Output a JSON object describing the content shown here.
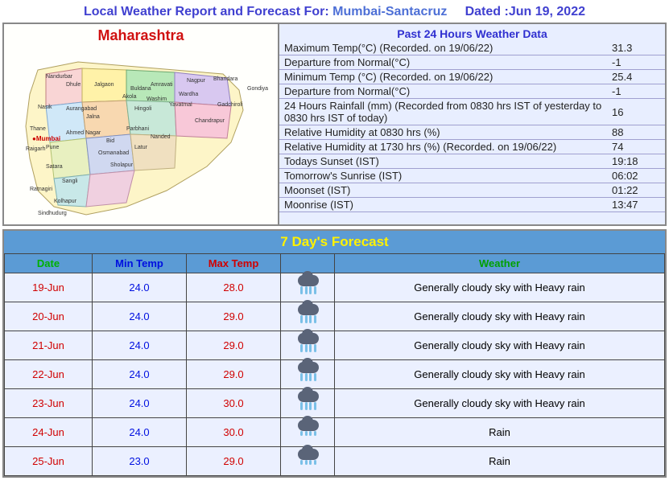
{
  "header": {
    "label": "Local Weather Report and Forecast For:",
    "location": "Mumbai-Santacruz",
    "date_label": "Dated :",
    "date_value": "Jun 19, 2022"
  },
  "map": {
    "title": "Maharashtra",
    "title_color": "#d01010"
  },
  "past24": {
    "title": "Past 24 Hours Weather Data",
    "rows": [
      {
        "label": "Maximum Temp(°C) (Recorded. on 19/06/22)",
        "value": "31.3"
      },
      {
        "label": "Departure from Normal(°C)",
        "value": "-1"
      },
      {
        "label": "Minimum Temp (°C) (Recorded. on 19/06/22)",
        "value": "25.4"
      },
      {
        "label": "Departure from Normal(°C)",
        "value": "-1"
      },
      {
        "label": "24 Hours Rainfall (mm) (Recorded from 0830 hrs IST of yesterday to 0830 hrs IST of today)",
        "value": "16"
      },
      {
        "label": "Relative Humidity at 0830 hrs (%)",
        "value": "88"
      },
      {
        "label": "Relative Humidity at 1730 hrs (%) (Recorded. on 19/06/22)",
        "value": "74"
      },
      {
        "label": "Todays Sunset (IST)",
        "value": "19:18"
      },
      {
        "label": "Tomorrow's Sunrise (IST)",
        "value": "06:02"
      },
      {
        "label": "Moonset (IST)",
        "value": "01:22"
      },
      {
        "label": "Moonrise (IST)",
        "value": "13:47"
      }
    ]
  },
  "forecast": {
    "title": "7 Day's Forecast",
    "headers": {
      "date": "Date",
      "min": "Min Temp",
      "max": "Max Temp",
      "weather": "Weather"
    },
    "rows": [
      {
        "date": "19-Jun",
        "min": "24.0",
        "max": "28.0",
        "icon": "heavy",
        "weather": "Generally cloudy sky with Heavy rain"
      },
      {
        "date": "20-Jun",
        "min": "24.0",
        "max": "29.0",
        "icon": "heavy",
        "weather": "Generally cloudy sky with Heavy rain"
      },
      {
        "date": "21-Jun",
        "min": "24.0",
        "max": "29.0",
        "icon": "heavy",
        "weather": "Generally cloudy sky with Heavy rain"
      },
      {
        "date": "22-Jun",
        "min": "24.0",
        "max": "29.0",
        "icon": "heavy",
        "weather": "Generally cloudy sky with Heavy rain"
      },
      {
        "date": "23-Jun",
        "min": "24.0",
        "max": "30.0",
        "icon": "heavy",
        "weather": "Generally cloudy sky with Heavy rain"
      },
      {
        "date": "24-Jun",
        "min": "24.0",
        "max": "30.0",
        "icon": "light",
        "weather": "Rain"
      },
      {
        "date": "25-Jun",
        "min": "23.0",
        "max": "29.0",
        "icon": "light",
        "weather": "Rain"
      }
    ]
  },
  "colors": {
    "header_bg": "#5b9bd5",
    "forecast_title_color": "#fff200",
    "panel_bg": "#e8eeff",
    "row_bg": "#ebf0ff",
    "border": "#444"
  }
}
